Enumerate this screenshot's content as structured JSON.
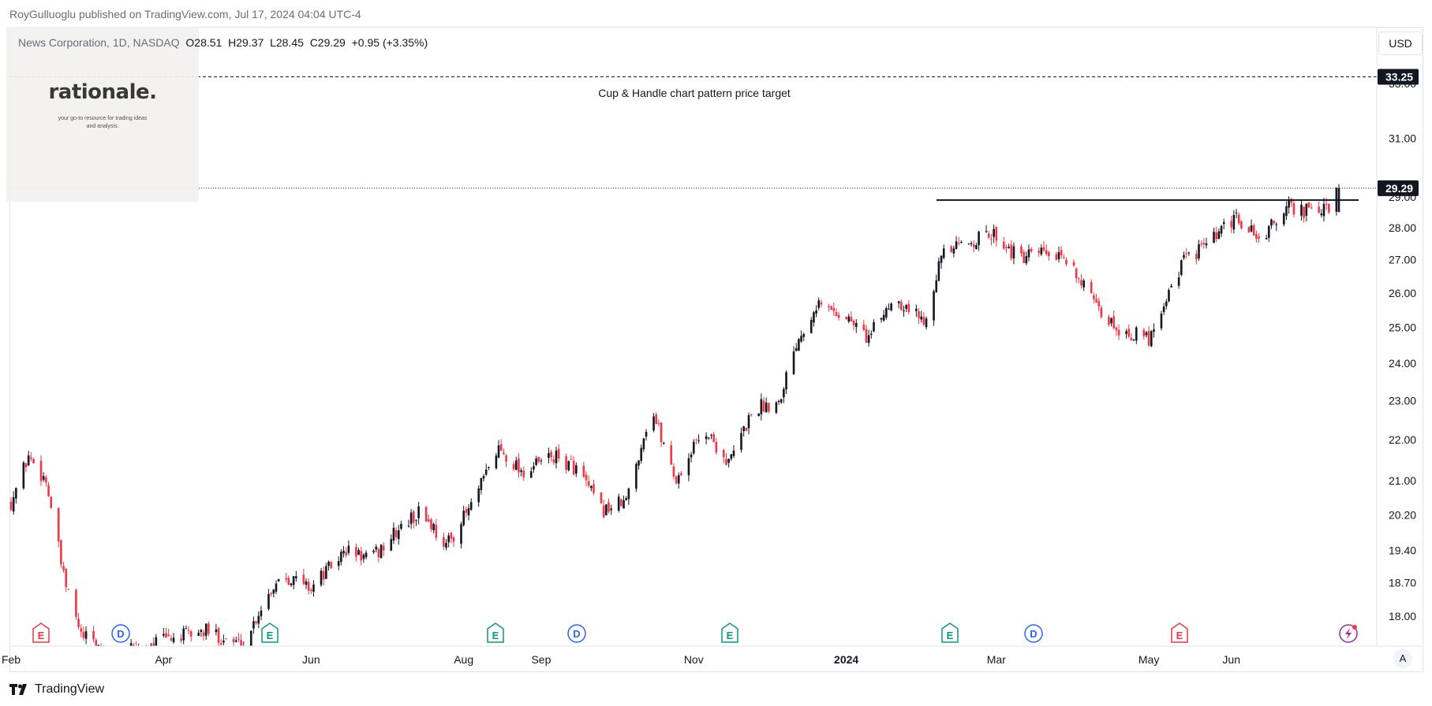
{
  "header": {
    "published": "RoyGulluoglu published on TradingView.com, Jul 17, 2024 04:04 UTC-4"
  },
  "legend": {
    "symbol": "News Corporation, 1D, NASDAQ",
    "open": "O28.51",
    "high": "H29.37",
    "low": "L28.45",
    "close": "C29.29",
    "change": "+0.95 (+3.35%)"
  },
  "logo": {
    "brand": "rationale.",
    "tagline": "your go-to resource for trading ideas and analysis."
  },
  "currency_button": "USD",
  "auto_button": "A",
  "footer": {
    "brand": "TradingView"
  },
  "colors": {
    "up": "#131722",
    "down": "#f23645",
    "earnings": "#f23645",
    "earnings_alt": "#089981",
    "dividend": "#2962ff",
    "accent": "#9c27b0"
  },
  "chart_data": {
    "type": "candlestick",
    "y_ticks": [
      "18.00",
      "18.70",
      "19.40",
      "20.20",
      "21.00",
      "22.00",
      "23.00",
      "24.00",
      "25.00",
      "26.00",
      "27.00",
      "28.00",
      "29.00",
      "31.00",
      "33.00"
    ],
    "x_labels": [
      "Feb",
      "Apr",
      "Jun",
      "Aug",
      "Sep",
      "Nov",
      "2024",
      "Mar",
      "May",
      "Jun"
    ],
    "y_scale": "log",
    "grid": false,
    "price_labels": [
      {
        "value": 33.25,
        "text": "33.25"
      },
      {
        "value": 29.29,
        "text": "29.29"
      }
    ],
    "annotation": "Cup & Handle chart pattern price target",
    "target_line": 33.25,
    "resistance_line": 28.9,
    "events": [
      {
        "date": "Feb",
        "type": "E"
      },
      {
        "date": "Mar",
        "type": "D"
      },
      {
        "date": "May",
        "type": "E"
      },
      {
        "date": "Aug",
        "type": "E"
      },
      {
        "date": "Sep",
        "type": "D"
      },
      {
        "date": "Nov",
        "type": "E"
      },
      {
        "date": "Feb 2024",
        "type": "E"
      },
      {
        "date": "Mar 2024",
        "type": "D"
      },
      {
        "date": "May 2024",
        "type": "E"
      },
      {
        "date": "Jul 2024",
        "type": "splits"
      }
    ],
    "price_path": [
      [
        "2023-02-01",
        20.5
      ],
      [
        "2023-02-08",
        21.6
      ],
      [
        "2023-02-15",
        21.0
      ],
      [
        "2023-02-22",
        18.8
      ],
      [
        "2023-03-01",
        17.6
      ],
      [
        "2023-03-15",
        17.2
      ],
      [
        "2023-04-01",
        17.5
      ],
      [
        "2023-04-20",
        17.7
      ],
      [
        "2023-05-05",
        17.4
      ],
      [
        "2023-05-12",
        18.2
      ],
      [
        "2023-05-20",
        18.9
      ],
      [
        "2023-06-01",
        18.6
      ],
      [
        "2023-06-15",
        19.4
      ],
      [
        "2023-06-25",
        19.2
      ],
      [
        "2023-07-05",
        19.8
      ],
      [
        "2023-07-15",
        20.3
      ],
      [
        "2023-07-25",
        19.5
      ],
      [
        "2023-08-05",
        20.5
      ],
      [
        "2023-08-15",
        21.8
      ],
      [
        "2023-08-25",
        21.2
      ],
      [
        "2023-09-05",
        21.6
      ],
      [
        "2023-09-15",
        21.3
      ],
      [
        "2023-09-25",
        20.3
      ],
      [
        "2023-10-05",
        20.5
      ],
      [
        "2023-10-15",
        22.8
      ],
      [
        "2023-10-25",
        21.0
      ],
      [
        "2023-11-05",
        22.3
      ],
      [
        "2023-11-15",
        21.4
      ],
      [
        "2023-11-25",
        22.8
      ],
      [
        "2023-12-05",
        23.0
      ],
      [
        "2023-12-12",
        24.6
      ],
      [
        "2023-12-20",
        25.7
      ],
      [
        "2024-01-01",
        25.3
      ],
      [
        "2024-01-10",
        24.7
      ],
      [
        "2024-01-20",
        25.9
      ],
      [
        "2024-02-01",
        25.2
      ],
      [
        "2024-02-08",
        27.1
      ],
      [
        "2024-02-20",
        27.6
      ],
      [
        "2024-03-01",
        27.8
      ],
      [
        "2024-03-10",
        27.0
      ],
      [
        "2024-03-20",
        27.2
      ],
      [
        "2024-04-01",
        26.8
      ],
      [
        "2024-04-10",
        25.5
      ],
      [
        "2024-04-20",
        24.9
      ],
      [
        "2024-05-01",
        24.7
      ],
      [
        "2024-05-08",
        25.9
      ],
      [
        "2024-05-15",
        27.0
      ],
      [
        "2024-05-25",
        27.5
      ],
      [
        "2024-06-05",
        28.3
      ],
      [
        "2024-06-15",
        27.6
      ],
      [
        "2024-06-25",
        28.7
      ],
      [
        "2024-07-05",
        28.5
      ],
      [
        "2024-07-12",
        28.6
      ],
      [
        "2024-07-16",
        29.29
      ]
    ]
  }
}
